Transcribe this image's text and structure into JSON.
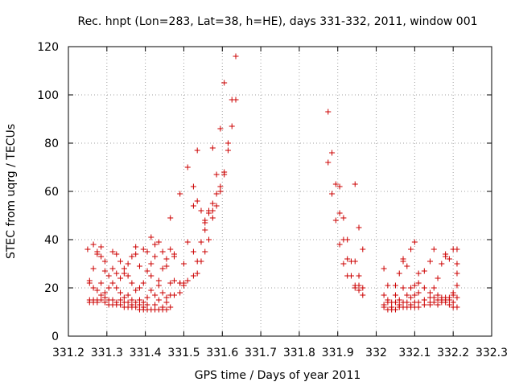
{
  "chart_data": {
    "type": "scatter",
    "title": "Rec. hnpt (Lon=283, Lat=38, h=HE), days 331-332, 2011, window 001",
    "xlabel": "GPS time / Days of year 2011",
    "ylabel": "STEC from uqrg / TECUs",
    "xlim": [
      331.2,
      332.3
    ],
    "ylim": [
      0,
      120
    ],
    "x_ticks": [
      "331.2",
      "331.3",
      "331.4",
      "331.5",
      "331.6",
      "331.7",
      "331.8",
      "331.9",
      "332",
      "332.1",
      "332.2",
      "332.3"
    ],
    "y_ticks": [
      "0",
      "20",
      "40",
      "60",
      "80",
      "100",
      "120"
    ],
    "grid": true,
    "marker": "+",
    "color": "#cc0000",
    "series": [
      {
        "points": [
          [
            331.25,
            36
          ],
          [
            331.255,
            23
          ],
          [
            331.255,
            22
          ],
          [
            331.255,
            15
          ],
          [
            331.255,
            14
          ],
          [
            331.265,
            38
          ],
          [
            331.265,
            28
          ],
          [
            331.265,
            20
          ],
          [
            331.265,
            15
          ],
          [
            331.265,
            14
          ],
          [
            331.275,
            35
          ],
          [
            331.275,
            34
          ],
          [
            331.275,
            19
          ],
          [
            331.275,
            15
          ],
          [
            331.275,
            14
          ],
          [
            331.285,
            37
          ],
          [
            331.285,
            33
          ],
          [
            331.285,
            22
          ],
          [
            331.285,
            17
          ],
          [
            331.285,
            15
          ],
          [
            331.295,
            31
          ],
          [
            331.295,
            27
          ],
          [
            331.295,
            18
          ],
          [
            331.295,
            16
          ],
          [
            331.295,
            14
          ],
          [
            331.305,
            25
          ],
          [
            331.305,
            20
          ],
          [
            331.305,
            15
          ],
          [
            331.305,
            13
          ],
          [
            331.315,
            35
          ],
          [
            331.315,
            28
          ],
          [
            331.315,
            22
          ],
          [
            331.315,
            15
          ],
          [
            331.315,
            13
          ],
          [
            331.325,
            34
          ],
          [
            331.325,
            26
          ],
          [
            331.325,
            20
          ],
          [
            331.325,
            14
          ],
          [
            331.325,
            13
          ],
          [
            331.335,
            31
          ],
          [
            331.335,
            24
          ],
          [
            331.335,
            18
          ],
          [
            331.335,
            15
          ],
          [
            331.335,
            13
          ],
          [
            331.345,
            28
          ],
          [
            331.345,
            26
          ],
          [
            331.345,
            16
          ],
          [
            331.345,
            14
          ],
          [
            331.345,
            12
          ],
          [
            331.355,
            30
          ],
          [
            331.355,
            25
          ],
          [
            331.355,
            17
          ],
          [
            331.355,
            14
          ],
          [
            331.355,
            12
          ],
          [
            331.365,
            33
          ],
          [
            331.365,
            22
          ],
          [
            331.365,
            15
          ],
          [
            331.365,
            13
          ],
          [
            331.365,
            12
          ],
          [
            331.375,
            37
          ],
          [
            331.375,
            34
          ],
          [
            331.375,
            19
          ],
          [
            331.375,
            14
          ],
          [
            331.375,
            12
          ],
          [
            331.385,
            29
          ],
          [
            331.385,
            20
          ],
          [
            331.385,
            15
          ],
          [
            331.385,
            13
          ],
          [
            331.385,
            11
          ],
          [
            331.395,
            36
          ],
          [
            331.395,
            22
          ],
          [
            331.395,
            14
          ],
          [
            331.395,
            12
          ],
          [
            331.395,
            11
          ],
          [
            331.405,
            35
          ],
          [
            331.405,
            27
          ],
          [
            331.405,
            16
          ],
          [
            331.405,
            13
          ],
          [
            331.405,
            11
          ],
          [
            331.415,
            41
          ],
          [
            331.415,
            30
          ],
          [
            331.415,
            25
          ],
          [
            331.415,
            19
          ],
          [
            331.415,
            11
          ],
          [
            331.425,
            38
          ],
          [
            331.425,
            33
          ],
          [
            331.425,
            17
          ],
          [
            331.425,
            13
          ],
          [
            331.425,
            11
          ],
          [
            331.435,
            39
          ],
          [
            331.435,
            23
          ],
          [
            331.435,
            21
          ],
          [
            331.435,
            15
          ],
          [
            331.435,
            11
          ],
          [
            331.445,
            35
          ],
          [
            331.445,
            28
          ],
          [
            331.445,
            18
          ],
          [
            331.445,
            12
          ],
          [
            331.445,
            11
          ],
          [
            331.455,
            32
          ],
          [
            331.455,
            29
          ],
          [
            331.455,
            16
          ],
          [
            331.455,
            14
          ],
          [
            331.455,
            11
          ],
          [
            331.465,
            49
          ],
          [
            331.465,
            36
          ],
          [
            331.465,
            22
          ],
          [
            331.465,
            17
          ],
          [
            331.465,
            12
          ],
          [
            331.475,
            34
          ],
          [
            331.475,
            33
          ],
          [
            331.475,
            23
          ],
          [
            331.475,
            17
          ],
          [
            331.49,
            59
          ],
          [
            331.49,
            22
          ],
          [
            331.49,
            22
          ],
          [
            331.49,
            18
          ],
          [
            331.5,
            30
          ],
          [
            331.5,
            22
          ],
          [
            331.5,
            21
          ],
          [
            331.51,
            70
          ],
          [
            331.51,
            39
          ],
          [
            331.51,
            23
          ],
          [
            331.525,
            62
          ],
          [
            331.525,
            54
          ],
          [
            331.525,
            35
          ],
          [
            331.525,
            25
          ],
          [
            331.535,
            77
          ],
          [
            331.535,
            56
          ],
          [
            331.535,
            31
          ],
          [
            331.535,
            26
          ],
          [
            331.545,
            52
          ],
          [
            331.545,
            39
          ],
          [
            331.545,
            31
          ],
          [
            331.555,
            48
          ],
          [
            331.555,
            47
          ],
          [
            331.555,
            44
          ],
          [
            331.555,
            35
          ],
          [
            331.565,
            52
          ],
          [
            331.565,
            51
          ],
          [
            331.565,
            40
          ],
          [
            331.575,
            78
          ],
          [
            331.575,
            55
          ],
          [
            331.575,
            52
          ],
          [
            331.575,
            49
          ],
          [
            331.585,
            67
          ],
          [
            331.585,
            59
          ],
          [
            331.585,
            54
          ],
          [
            331.595,
            86
          ],
          [
            331.595,
            62
          ],
          [
            331.595,
            60
          ],
          [
            331.605,
            105
          ],
          [
            331.605,
            68
          ],
          [
            331.605,
            67
          ],
          [
            331.615,
            80
          ],
          [
            331.615,
            77
          ],
          [
            331.625,
            98
          ],
          [
            331.625,
            87
          ],
          [
            331.635,
            116
          ],
          [
            331.635,
            98
          ],
          [
            331.875,
            93
          ],
          [
            331.875,
            72
          ],
          [
            331.885,
            76
          ],
          [
            331.885,
            59
          ],
          [
            331.895,
            63
          ],
          [
            331.895,
            48
          ],
          [
            331.905,
            62
          ],
          [
            331.905,
            51
          ],
          [
            331.905,
            38
          ],
          [
            331.915,
            49
          ],
          [
            331.915,
            40
          ],
          [
            331.915,
            30
          ],
          [
            331.925,
            40
          ],
          [
            331.925,
            32
          ],
          [
            331.925,
            25
          ],
          [
            331.935,
            31
          ],
          [
            331.935,
            25
          ],
          [
            331.945,
            63
          ],
          [
            331.945,
            31
          ],
          [
            331.945,
            21
          ],
          [
            331.945,
            20
          ],
          [
            331.955,
            45
          ],
          [
            331.955,
            25
          ],
          [
            331.955,
            21
          ],
          [
            331.955,
            19
          ],
          [
            331.965,
            36
          ],
          [
            331.965,
            20
          ],
          [
            331.965,
            17
          ],
          [
            332.02,
            28
          ],
          [
            332.02,
            17
          ],
          [
            332.02,
            13
          ],
          [
            332.02,
            12
          ],
          [
            332.03,
            21
          ],
          [
            332.03,
            15
          ],
          [
            332.03,
            14
          ],
          [
            332.03,
            11
          ],
          [
            332.04,
            14
          ],
          [
            332.04,
            12
          ],
          [
            332.04,
            11
          ],
          [
            332.05,
            21
          ],
          [
            332.05,
            17
          ],
          [
            332.05,
            14
          ],
          [
            332.05,
            11
          ],
          [
            332.06,
            26
          ],
          [
            332.06,
            15
          ],
          [
            332.06,
            13
          ],
          [
            332.06,
            12
          ],
          [
            332.07,
            32
          ],
          [
            332.07,
            31
          ],
          [
            332.07,
            20
          ],
          [
            332.07,
            14
          ],
          [
            332.07,
            12
          ],
          [
            332.08,
            29
          ],
          [
            332.08,
            17
          ],
          [
            332.08,
            14
          ],
          [
            332.08,
            12
          ],
          [
            332.09,
            36
          ],
          [
            332.09,
            20
          ],
          [
            332.09,
            16
          ],
          [
            332.09,
            13
          ],
          [
            332.09,
            12
          ],
          [
            332.1,
            39
          ],
          [
            332.1,
            21
          ],
          [
            332.1,
            17
          ],
          [
            332.1,
            14
          ],
          [
            332.1,
            12
          ],
          [
            332.11,
            26
          ],
          [
            332.11,
            22
          ],
          [
            332.11,
            18
          ],
          [
            332.11,
            14
          ],
          [
            332.11,
            12
          ],
          [
            332.125,
            27
          ],
          [
            332.125,
            20
          ],
          [
            332.125,
            15
          ],
          [
            332.125,
            13
          ],
          [
            332.14,
            31
          ],
          [
            332.14,
            18
          ],
          [
            332.14,
            16
          ],
          [
            332.14,
            14
          ],
          [
            332.14,
            13
          ],
          [
            332.15,
            36
          ],
          [
            332.15,
            20
          ],
          [
            332.15,
            16
          ],
          [
            332.15,
            14
          ],
          [
            332.16,
            24
          ],
          [
            332.16,
            17
          ],
          [
            332.16,
            15
          ],
          [
            332.16,
            13
          ],
          [
            332.17,
            30
          ],
          [
            332.17,
            16
          ],
          [
            332.17,
            15
          ],
          [
            332.17,
            14
          ],
          [
            332.18,
            34
          ],
          [
            332.18,
            33
          ],
          [
            332.18,
            16
          ],
          [
            332.18,
            15
          ],
          [
            332.18,
            14
          ],
          [
            332.19,
            32
          ],
          [
            332.19,
            16
          ],
          [
            332.19,
            15
          ],
          [
            332.19,
            13
          ],
          [
            332.2,
            36
          ],
          [
            332.2,
            18
          ],
          [
            332.2,
            17
          ],
          [
            332.2,
            14
          ],
          [
            332.2,
            12
          ],
          [
            332.21,
            36
          ],
          [
            332.21,
            30
          ],
          [
            332.21,
            26
          ],
          [
            332.21,
            21
          ],
          [
            332.21,
            16
          ],
          [
            332.21,
            12
          ]
        ]
      }
    ]
  }
}
